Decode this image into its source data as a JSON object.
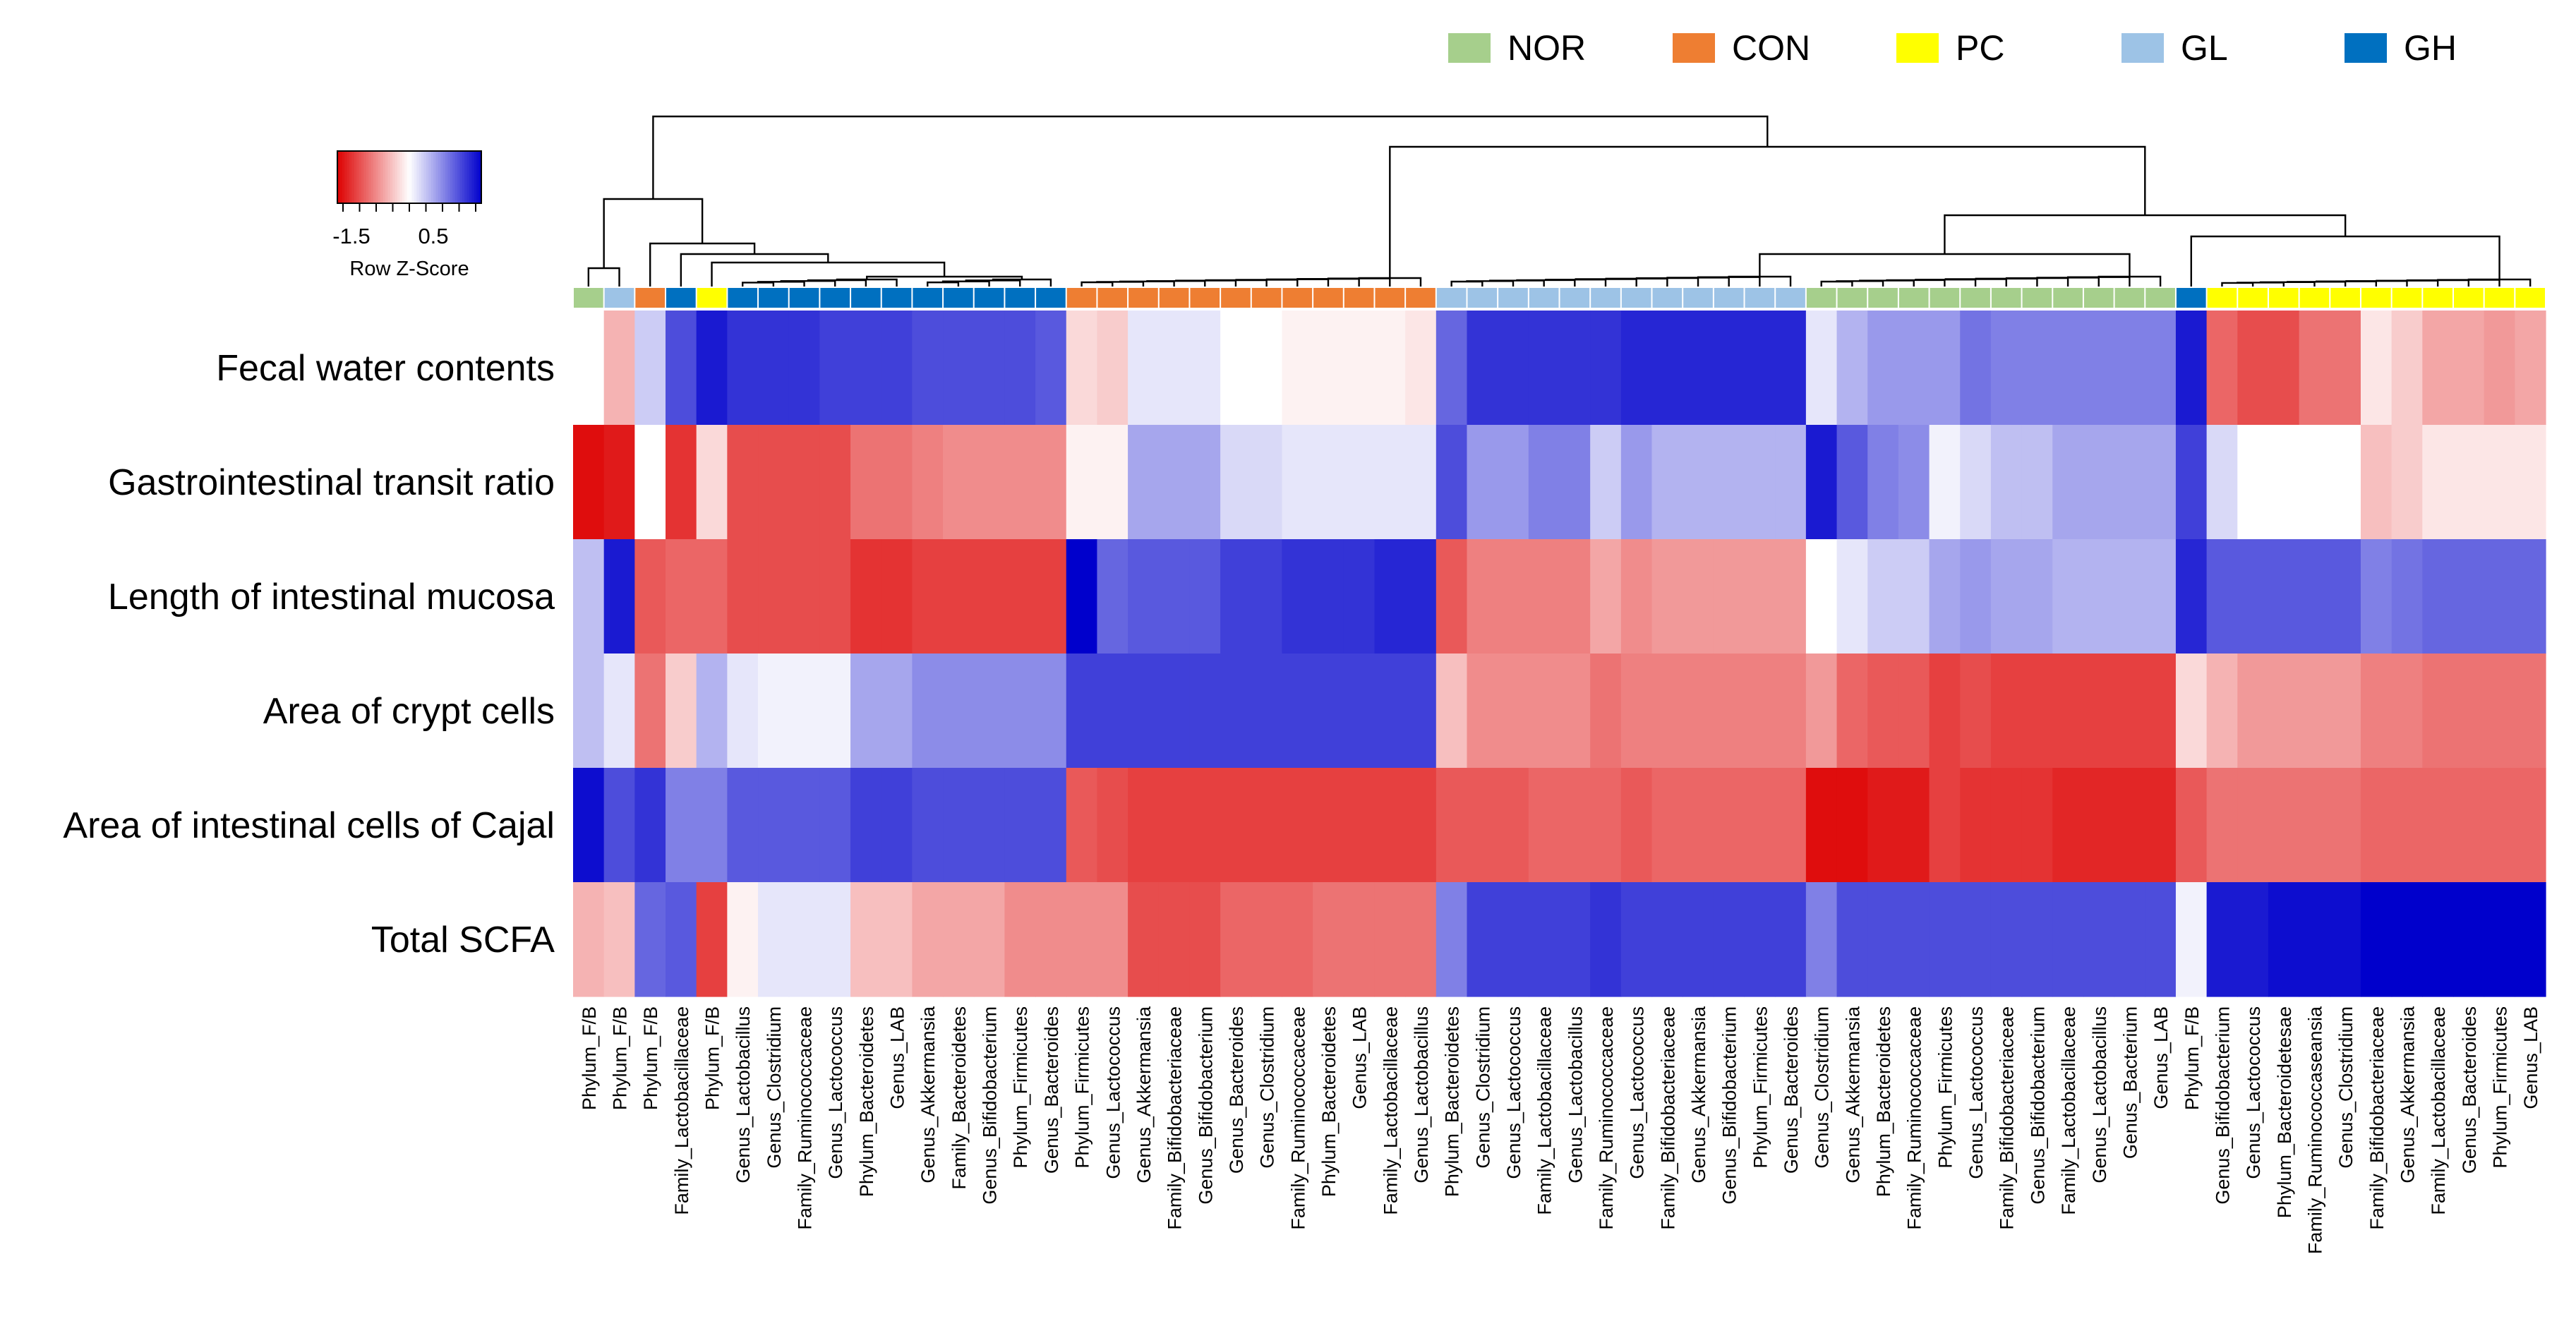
{
  "chart_data": {
    "type": "heatmap",
    "title": "",
    "legend_position": "top-right",
    "legend": [
      {
        "label": "NOR",
        "color": "#a6cf8c"
      },
      {
        "label": "CON",
        "color": "#ee7e32"
      },
      {
        "label": "PC",
        "color": "#ffff00"
      },
      {
        "label": "GL",
        "color": "#9dc3e6"
      },
      {
        "label": "GH",
        "color": "#0070c0"
      }
    ],
    "color_key": {
      "label": "Row Z-Score",
      "tick_labels": [
        "-1.5",
        "0.5"
      ],
      "range": [
        -2,
        2
      ],
      "low_color": "#dd0000",
      "mid_color": "#ffffff",
      "high_color": "#0000cc"
    },
    "rows": [
      "Fecal water contents",
      "Gastrointestinal transit ratio",
      "Length of intestinal mucosa",
      "Area of crypt cells",
      "Area of intestinal cells of Cajal",
      "Total SCFA"
    ],
    "columns": [
      "Phylum_F/B",
      "Phylum_F/B",
      "Phylum_F/B",
      "Family_Lactobacillaceae",
      "Phylum_F/B",
      "Genus_Lactobacillus",
      "Genus_Clostridium",
      "Family_Ruminococcaceae",
      "Genus_Lactococcus",
      "Phylum_Bacteroidetes",
      "Genus_LAB",
      "Genus_Akkermansia",
      "Family_Bacteroidetes",
      "Genus_Bifidobacterium",
      "Phylum_Firmicutes",
      "Genus_Bacteroides",
      "Phylum_Firmicutes",
      "Genus_Lactococcus",
      "Genus_Akkermansia",
      "Family_Bifidobacteriaceae",
      "Genus_Bifidobacterium",
      "Genus_Bacteroides",
      "Genus_Clostridium",
      "Family_Ruminococcaceae",
      "Phylum_Bacteroidetes",
      "Genus_LAB",
      "Family_Lactobacillaceae",
      "Genus_Lactobacillus",
      "Phylum_Bacteroidetes",
      "Genus_Clostridium",
      "Genus_Lactococcus",
      "Family_Lactobacillaceae",
      "Genus_Lactobacillus",
      "Family_Ruminococcaceae",
      "Genus_Lactococcus",
      "Family_Bifidobacteriaceae",
      "Genus_Akkermansia",
      "Genus_Bifidobacterium",
      "Phylum_Firmicutes",
      "Genus_Bacteroides",
      "Genus_Clostridium",
      "Genus_Akkermansia",
      "Phylum_Bacteroidetes",
      "Family_Ruminococcaceae",
      "Phylum_Firmicutes",
      "Genus_Lactococcus",
      "Family_Bifidobacteriaceae",
      "Genus_Bifidobacterium",
      "Family_Lactobacillaceae",
      "Genus_Lactobacillus",
      "Genus_Bacterium",
      "Genus_LAB",
      "Phylum_F/B",
      "Genus_Bifidobacterium",
      "Genus_Lactococcus",
      "Phylum_Bacteroidetesae",
      "Family_Ruminococcaseansia",
      "Genus_Clostridium",
      "Family_Bifidobacteriaceae",
      "Genus_Akkermansia",
      "Family_Lactobacillaceae",
      "Genus_Bacteroides",
      "Phylum_Firmicutes",
      "Genus_LAB"
    ],
    "column_groups": [
      "NOR",
      "GL",
      "CON",
      "GH",
      "PC",
      "GH",
      "GH",
      "GH",
      "GH",
      "GH",
      "GH",
      "GH",
      "GH",
      "GH",
      "GH",
      "GH",
      "CON",
      "CON",
      "CON",
      "CON",
      "CON",
      "CON",
      "CON",
      "CON",
      "CON",
      "CON",
      "CON",
      "CON",
      "GL",
      "GL",
      "GL",
      "GL",
      "GL",
      "GL",
      "GL",
      "GL",
      "GL",
      "GL",
      "GL",
      "GL",
      "NOR",
      "NOR",
      "NOR",
      "NOR",
      "NOR",
      "NOR",
      "NOR",
      "NOR",
      "NOR",
      "NOR",
      "NOR",
      "NOR",
      "GH",
      "PC",
      "PC",
      "PC",
      "PC",
      "PC",
      "PC",
      "PC",
      "PC",
      "PC",
      "PC",
      "PC"
    ],
    "values": [
      [
        0.0,
        -0.6,
        0.4,
        1.4,
        1.8,
        1.6,
        1.6,
        1.6,
        1.5,
        1.5,
        1.5,
        1.4,
        1.4,
        1.4,
        1.4,
        1.3,
        -0.3,
        -0.4,
        0.2,
        0.2,
        0.2,
        0.0,
        0.0,
        -0.1,
        -0.1,
        -0.1,
        -0.1,
        -0.2,
        1.2,
        1.6,
        1.6,
        1.6,
        1.6,
        1.6,
        1.7,
        1.7,
        1.7,
        1.7,
        1.7,
        1.7,
        0.2,
        0.6,
        0.8,
        0.8,
        0.8,
        1.1,
        1.0,
        1.0,
        1.0,
        1.0,
        1.0,
        1.0,
        1.8,
        -1.2,
        -1.4,
        -1.4,
        -1.1,
        -1.1,
        -0.2,
        -0.4,
        -0.7,
        -0.7,
        -0.8,
        -0.7
      ],
      [
        -1.9,
        -1.8,
        0.0,
        -1.6,
        -0.3,
        -1.4,
        -1.4,
        -1.4,
        -1.4,
        -1.1,
        -1.1,
        -1.0,
        -0.9,
        -0.9,
        -0.9,
        -0.9,
        -0.1,
        -0.1,
        0.7,
        0.7,
        0.7,
        0.3,
        0.3,
        0.2,
        0.2,
        0.2,
        0.2,
        0.2,
        1.4,
        0.8,
        0.8,
        1.0,
        1.0,
        0.4,
        0.8,
        0.6,
        0.6,
        0.6,
        0.6,
        0.6,
        1.8,
        1.3,
        1.0,
        0.9,
        0.1,
        0.3,
        0.5,
        0.5,
        0.7,
        0.7,
        0.7,
        0.7,
        1.5,
        0.3,
        0.0,
        0.0,
        0.0,
        0.0,
        -0.5,
        -0.4,
        -0.2,
        -0.2,
        -0.2,
        -0.2
      ],
      [
        0.5,
        1.8,
        -1.3,
        -1.2,
        -1.2,
        -1.4,
        -1.4,
        -1.4,
        -1.4,
        -1.6,
        -1.6,
        -1.5,
        -1.5,
        -1.5,
        -1.5,
        -1.5,
        2.0,
        1.2,
        1.3,
        1.3,
        1.3,
        1.5,
        1.5,
        1.6,
        1.6,
        1.6,
        1.7,
        1.7,
        -1.3,
        -1.0,
        -1.0,
        -1.0,
        -1.0,
        -0.7,
        -0.9,
        -0.8,
        -0.8,
        -0.8,
        -0.8,
        -0.8,
        0.0,
        0.2,
        0.4,
        0.4,
        0.7,
        0.8,
        0.7,
        0.7,
        0.6,
        0.6,
        0.6,
        0.6,
        1.7,
        1.3,
        1.3,
        1.3,
        1.3,
        1.3,
        1.0,
        1.1,
        1.2,
        1.2,
        1.2,
        1.2
      ],
      [
        0.5,
        0.2,
        -1.1,
        -0.4,
        0.6,
        0.2,
        0.1,
        0.1,
        0.1,
        0.7,
        0.7,
        0.9,
        0.9,
        0.9,
        0.9,
        0.9,
        1.5,
        1.5,
        1.5,
        1.5,
        1.5,
        1.5,
        1.5,
        1.5,
        1.5,
        1.5,
        1.5,
        1.5,
        -0.5,
        -0.9,
        -0.9,
        -0.9,
        -0.9,
        -1.1,
        -1.0,
        -1.0,
        -1.0,
        -1.0,
        -1.0,
        -1.0,
        -0.8,
        -1.2,
        -1.3,
        -1.3,
        -1.5,
        -1.4,
        -1.5,
        -1.5,
        -1.5,
        -1.5,
        -1.5,
        -1.5,
        -0.3,
        -0.6,
        -0.8,
        -0.8,
        -0.8,
        -0.8,
        -1.0,
        -1.0,
        -1.1,
        -1.1,
        -1.1,
        -1.1
      ],
      [
        1.9,
        1.4,
        1.6,
        1.0,
        1.0,
        1.3,
        1.3,
        1.3,
        1.3,
        1.5,
        1.5,
        1.4,
        1.4,
        1.4,
        1.4,
        1.4,
        -1.3,
        -1.4,
        -1.5,
        -1.5,
        -1.5,
        -1.5,
        -1.5,
        -1.5,
        -1.5,
        -1.5,
        -1.5,
        -1.5,
        -1.3,
        -1.3,
        -1.3,
        -1.2,
        -1.2,
        -1.2,
        -1.3,
        -1.2,
        -1.2,
        -1.2,
        -1.2,
        -1.2,
        -1.9,
        -1.9,
        -1.8,
        -1.8,
        -1.5,
        -1.6,
        -1.6,
        -1.6,
        -1.7,
        -1.7,
        -1.7,
        -1.7,
        -1.3,
        -1.1,
        -1.1,
        -1.1,
        -1.1,
        -1.1,
        -1.2,
        -1.2,
        -1.2,
        -1.2,
        -1.2,
        -1.2
      ],
      [
        -0.6,
        -0.5,
        1.2,
        1.3,
        -1.5,
        -0.1,
        0.2,
        0.2,
        0.2,
        -0.5,
        -0.5,
        -0.7,
        -0.7,
        -0.7,
        -0.9,
        -0.9,
        -0.9,
        -0.9,
        -1.4,
        -1.4,
        -1.4,
        -1.2,
        -1.2,
        -1.2,
        -1.1,
        -1.1,
        -1.1,
        -1.1,
        1.0,
        1.5,
        1.5,
        1.5,
        1.5,
        1.6,
        1.5,
        1.5,
        1.5,
        1.5,
        1.5,
        1.5,
        1.0,
        1.4,
        1.4,
        1.4,
        1.4,
        1.4,
        1.4,
        1.4,
        1.4,
        1.4,
        1.4,
        1.4,
        0.1,
        1.8,
        1.8,
        1.9,
        1.9,
        1.9,
        2.0,
        2.0,
        2.0,
        2.0,
        2.0,
        2.0
      ]
    ]
  }
}
